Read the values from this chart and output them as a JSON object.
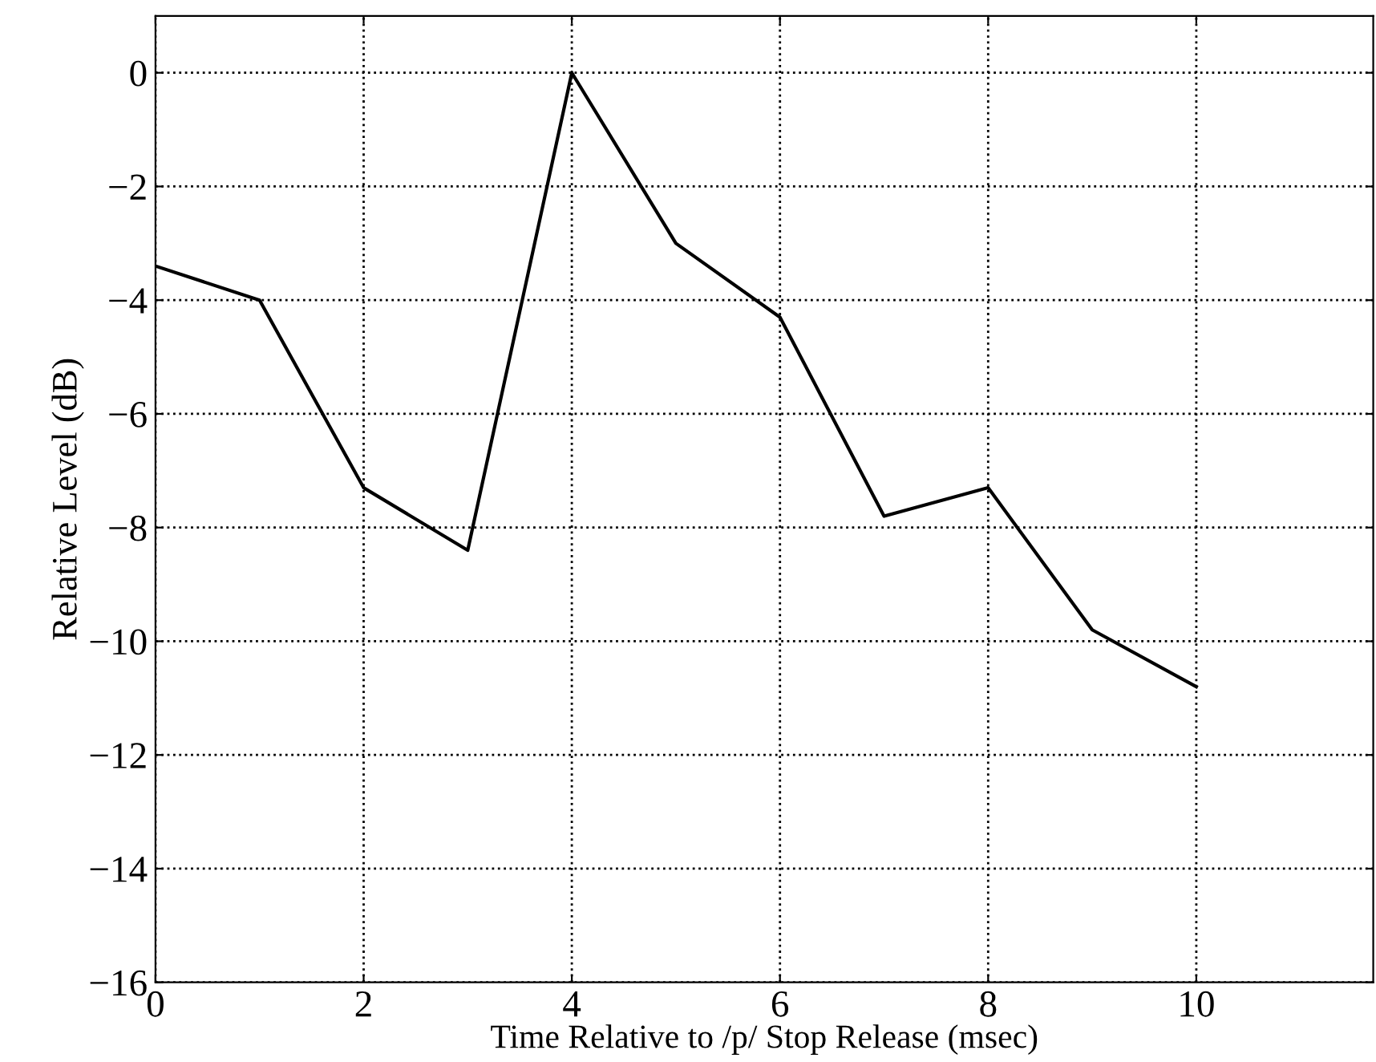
{
  "chart_data": {
    "type": "line",
    "xlabel": "Time Relative to /p/ Stop Release (msec)",
    "ylabel": "Relative Level (dB)",
    "x": [
      0,
      1,
      2,
      3,
      4,
      5,
      6,
      7,
      8,
      9,
      10
    ],
    "series": [
      {
        "color": "#000000",
        "values": [
          -3.4,
          -4.0,
          -7.3,
          -8.4,
          0,
          -3.0,
          -4.3,
          -7.8,
          -7.3,
          -9.8,
          -10.8
        ]
      }
    ],
    "xlim": [
      0,
      11.7
    ],
    "ylim": [
      -16,
      1
    ],
    "xticks": [
      0,
      2,
      4,
      6,
      8,
      10
    ],
    "yticks": [
      {
        "value": -16,
        "label": "−16"
      },
      {
        "value": -14,
        "label": "−14"
      },
      {
        "value": -12,
        "label": "−12"
      },
      {
        "value": -10,
        "label": "−10"
      },
      {
        "value": -8,
        "label": "−8"
      },
      {
        "value": -6,
        "label": "−6"
      },
      {
        "value": -4,
        "label": "−4"
      },
      {
        "value": -2,
        "label": "−2"
      },
      0
    ],
    "grid": true,
    "line_style": "solid",
    "marker": "none"
  }
}
